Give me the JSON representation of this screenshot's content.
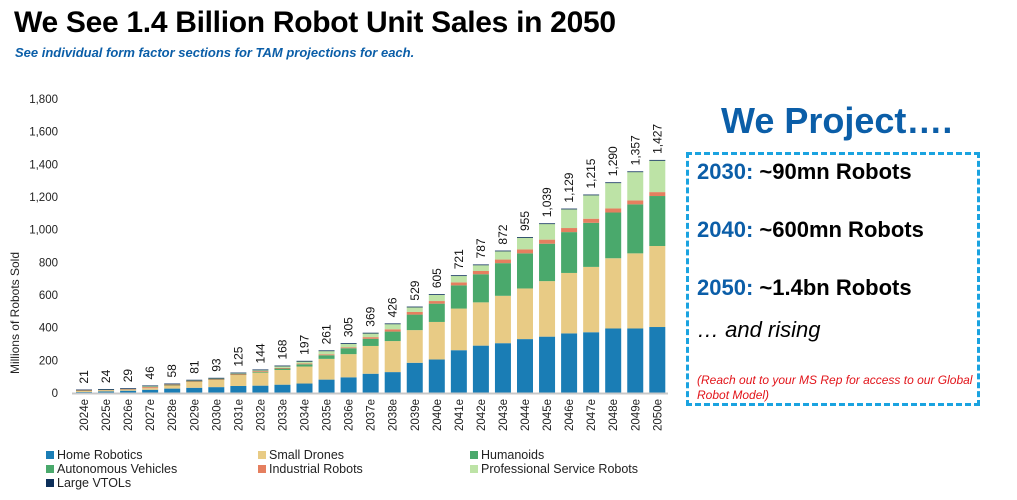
{
  "header": {
    "title": "We See 1.4 Billion Robot Unit Sales in 2050",
    "subtitle": "See individual form factor sections for TAM projections for each."
  },
  "chart_data": {
    "type": "bar",
    "stacked": true,
    "title": "",
    "xlabel": "",
    "ylabel": "Millions of Robots Sold",
    "ylim": [
      0,
      1800
    ],
    "yticks": [
      0,
      200,
      400,
      600,
      800,
      1000,
      1200,
      1400,
      1600,
      1800
    ],
    "ytick_labels": [
      "0",
      "200",
      "400",
      "600",
      "800",
      "1,000",
      "1,200",
      "1,400",
      "1,600",
      "1,800"
    ],
    "grid": false,
    "legend_position": "bottom",
    "categories": [
      "2024e",
      "2025e",
      "2026e",
      "2027e",
      "2028e",
      "2029e",
      "2030e",
      "2031e",
      "2032e",
      "2033e",
      "2034e",
      "2035e",
      "2036e",
      "2037e",
      "2038e",
      "2039e",
      "2040e",
      "2041e",
      "2042e",
      "2043e",
      "2044e",
      "2045e",
      "2046e",
      "2047e",
      "2048e",
      "2049e",
      "2050e"
    ],
    "totals": [
      21,
      24,
      29,
      46,
      58,
      81,
      93,
      125,
      144,
      168,
      197,
      261,
      305,
      369,
      426,
      529,
      605,
      721,
      787,
      872,
      955,
      1039,
      1129,
      1215,
      1290,
      1357,
      1427
    ],
    "total_labels": [
      "21",
      "24",
      "29",
      "46",
      "58",
      "81",
      "93",
      "125",
      "144",
      "168",
      "197",
      "261",
      "305",
      "369",
      "426",
      "529",
      "605",
      "721",
      "787",
      "872",
      "955",
      "1,039",
      "1,129",
      "1,215",
      "1,290",
      "1,357",
      "1,427"
    ],
    "series": [
      {
        "name": "Home Robotics",
        "color": "#1a7db5",
        "values": [
          6,
          10,
          14,
          20,
          27,
          32,
          36,
          43,
          45,
          51,
          58,
          82,
          96,
          118,
          128,
          185,
          205,
          262,
          290,
          305,
          330,
          345,
          365,
          372,
          395,
          395,
          404
        ]
      },
      {
        "name": "Small Drones",
        "color": "#e8cb85",
        "values": [
          12,
          9,
          8,
          10,
          22,
          40,
          47,
          68,
          80,
          90,
          104,
          127,
          142,
          170,
          190,
          200,
          230,
          255,
          265,
          290,
          310,
          340,
          370,
          400,
          430,
          460,
          496
        ]
      },
      {
        "name": "Humanoids",
        "color": "#4aa96c",
        "values": [
          0,
          0,
          0,
          0,
          0,
          0,
          0,
          0,
          0,
          0,
          0,
          0,
          0,
          0,
          0,
          0,
          0,
          0,
          0,
          0,
          0,
          0,
          0,
          0,
          0,
          0,
          0
        ]
      },
      {
        "name": "Autonomous Vehicles",
        "color": "#4aa96c",
        "values": [
          0,
          0,
          0,
          0,
          1,
          1,
          2,
          4,
          6,
          10,
          14,
          22,
          36,
          44,
          58,
          95,
          112,
          142,
          172,
          200,
          215,
          229,
          250,
          270,
          280,
          300,
          306
        ]
      },
      {
        "name": "Industrial Robots",
        "color": "#e57f5f",
        "values": [
          2,
          2,
          2,
          6,
          2,
          2,
          2,
          2,
          3,
          3,
          5,
          6,
          6,
          10,
          14,
          16,
          16,
          18,
          20,
          22,
          24,
          25,
          25,
          25,
          25,
          24,
          24
        ]
      },
      {
        "name": "Professional Service Robots",
        "color": "#bde3a6",
        "values": [
          0,
          1,
          3,
          8,
          4,
          4,
          4,
          6,
          8,
          12,
          14,
          20,
          22,
          24,
          32,
          30,
          38,
          40,
          36,
          51,
          72,
          96,
          115,
          144,
          156,
          174,
          192
        ]
      },
      {
        "name": "Large VTOLs",
        "color": "#0d2f5a",
        "values": [
          1,
          2,
          2,
          2,
          2,
          2,
          2,
          2,
          2,
          2,
          2,
          4,
          3,
          3,
          4,
          3,
          4,
          4,
          4,
          4,
          4,
          4,
          4,
          4,
          4,
          4,
          5
        ]
      }
    ]
  },
  "legend": [
    {
      "label": "Home Robotics",
      "color": "#1a7db5"
    },
    {
      "label": "Small Drones",
      "color": "#e8cb85"
    },
    {
      "label": "Humanoids",
      "color": "#4aa96c"
    },
    {
      "label": "Autonomous Vehicles",
      "color": "#4aa96c"
    },
    {
      "label": "Industrial Robots",
      "color": "#e57f5f"
    },
    {
      "label": "Professional Service Robots",
      "color": "#bde3a6"
    },
    {
      "label": "Large VTOLs",
      "color": "#0d2f5a"
    }
  ],
  "projection": {
    "heading": "We Project….",
    "lines": [
      {
        "year": "2030:",
        "text": " ~90mn Robots"
      },
      {
        "year": "2040:",
        "text": " ~600mn Robots"
      },
      {
        "year": "2050:",
        "text": " ~1.4bn Robots"
      }
    ],
    "rising": "… and rising",
    "note": "(Reach out to your MS Rep for access to our Global Robot Model)"
  }
}
